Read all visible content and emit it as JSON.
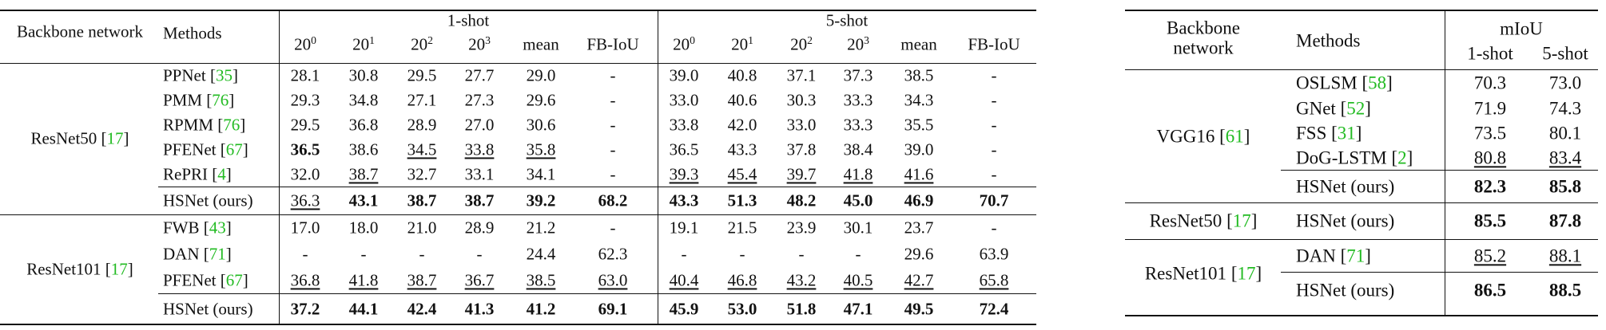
{
  "left_table": {
    "header": {
      "backbone": "Backbone network",
      "methods": "Methods",
      "groups": [
        {
          "label": "1-shot",
          "columns": [
            {
              "base": "20",
              "sup": "0"
            },
            {
              "base": "20",
              "sup": "1"
            },
            {
              "base": "20",
              "sup": "2"
            },
            {
              "base": "20",
              "sup": "3"
            },
            "mean",
            "FB-IoU"
          ]
        },
        {
          "label": "5-shot",
          "columns": [
            {
              "base": "20",
              "sup": "0"
            },
            {
              "base": "20",
              "sup": "1"
            },
            {
              "base": "20",
              "sup": "2"
            },
            {
              "base": "20",
              "sup": "3"
            },
            "mean",
            "FB-IoU"
          ]
        }
      ]
    },
    "sections": [
      {
        "backbone": {
          "name": "ResNet50",
          "ref": "[17]"
        },
        "rows": [
          {
            "method": {
              "name": "PPNet",
              "ref": "[35]"
            },
            "cells": [
              "28.1",
              "30.8",
              "29.5",
              "27.7",
              "29.0",
              "-",
              "39.0",
              "40.8",
              "37.1",
              "37.3",
              "38.5",
              "-"
            ]
          },
          {
            "method": {
              "name": "PMM",
              "ref": "[76]"
            },
            "cells": [
              "29.3",
              "34.8",
              "27.1",
              "27.3",
              "29.6",
              "-",
              "33.0",
              "40.6",
              "30.3",
              "33.3",
              "34.3",
              "-"
            ]
          },
          {
            "method": {
              "name": "RPMM",
              "ref": "[76]"
            },
            "cells": [
              "29.5",
              "36.8",
              "28.9",
              "27.0",
              "30.6",
              "-",
              "33.8",
              "42.0",
              "33.0",
              "33.3",
              "35.5",
              "-"
            ]
          },
          {
            "method": {
              "name": "PFENet",
              "ref": "[67]"
            },
            "cells": [
              {
                "text": "36.5",
                "style": "bold"
              },
              "38.6",
              {
                "text": "34.5",
                "style": "underline"
              },
              {
                "text": "33.8",
                "style": "underline"
              },
              {
                "text": "35.8",
                "style": "underline"
              },
              "-",
              "36.5",
              "43.3",
              "37.8",
              "38.4",
              "39.0",
              "-"
            ]
          },
          {
            "method": {
              "name": "RePRI",
              "ref": "[4]"
            },
            "cells": [
              "32.0",
              {
                "text": "38.7",
                "style": "underline"
              },
              "32.7",
              "33.1",
              "34.1",
              "-",
              {
                "text": "39.3",
                "style": "underline"
              },
              {
                "text": "45.4",
                "style": "underline"
              },
              {
                "text": "39.7",
                "style": "underline"
              },
              {
                "text": "41.8",
                "style": "underline"
              },
              {
                "text": "41.6",
                "style": "underline"
              },
              "-"
            ]
          },
          {
            "method": {
              "name": "HSNet (ours)"
            },
            "cells": [
              {
                "text": "36.3",
                "style": "underline"
              },
              {
                "text": "43.1",
                "style": "bold"
              },
              {
                "text": "38.7",
                "style": "bold"
              },
              {
                "text": "38.7",
                "style": "bold"
              },
              {
                "text": "39.2",
                "style": "bold"
              },
              {
                "text": "68.2",
                "style": "bold"
              },
              {
                "text": "43.3",
                "style": "bold"
              },
              {
                "text": "51.3",
                "style": "bold"
              },
              {
                "text": "48.2",
                "style": "bold"
              },
              {
                "text": "45.0",
                "style": "bold"
              },
              {
                "text": "46.9",
                "style": "bold"
              },
              {
                "text": "70.7",
                "style": "bold"
              }
            ]
          }
        ]
      },
      {
        "backbone": {
          "name": "ResNet101",
          "ref": "[17]"
        },
        "rows": [
          {
            "method": {
              "name": "FWB",
              "ref": "[43]"
            },
            "cells": [
              "17.0",
              "18.0",
              "21.0",
              "28.9",
              "21.2",
              "-",
              "19.1",
              "21.5",
              "23.9",
              "30.1",
              "23.7",
              "-"
            ]
          },
          {
            "method": {
              "name": "DAN",
              "ref": "[71]"
            },
            "cells": [
              "-",
              "-",
              "-",
              "-",
              "24.4",
              "62.3",
              "-",
              "-",
              "-",
              "-",
              "29.6",
              "63.9"
            ]
          },
          {
            "method": {
              "name": "PFENet",
              "ref": "[67]"
            },
            "cells": [
              {
                "text": "36.8",
                "style": "underline"
              },
              {
                "text": "41.8",
                "style": "underline"
              },
              {
                "text": "38.7",
                "style": "underline"
              },
              {
                "text": "36.7",
                "style": "underline"
              },
              {
                "text": "38.5",
                "style": "underline"
              },
              {
                "text": "63.0",
                "style": "underline"
              },
              {
                "text": "40.4",
                "style": "underline"
              },
              {
                "text": "46.8",
                "style": "underline"
              },
              {
                "text": "43.2",
                "style": "underline"
              },
              {
                "text": "40.5",
                "style": "underline"
              },
              {
                "text": "42.7",
                "style": "underline"
              },
              {
                "text": "65.8",
                "style": "underline"
              }
            ]
          },
          {
            "method": {
              "name": "HSNet (ours)"
            },
            "cells": [
              {
                "text": "37.2",
                "style": "bold"
              },
              {
                "text": "44.1",
                "style": "bold"
              },
              {
                "text": "42.4",
                "style": "bold"
              },
              {
                "text": "41.3",
                "style": "bold"
              },
              {
                "text": "41.2",
                "style": "bold"
              },
              {
                "text": "69.1",
                "style": "bold"
              },
              {
                "text": "45.9",
                "style": "bold"
              },
              {
                "text": "53.0",
                "style": "bold"
              },
              {
                "text": "51.8",
                "style": "bold"
              },
              {
                "text": "47.1",
                "style": "bold"
              },
              {
                "text": "49.5",
                "style": "bold"
              },
              {
                "text": "72.4",
                "style": "bold"
              }
            ]
          }
        ]
      }
    ]
  },
  "right_table": {
    "header": {
      "backbone": "Backbone network",
      "methods": "Methods",
      "groups": [
        {
          "label": "mIoU",
          "columns": [
            "1-shot",
            "5-shot"
          ]
        }
      ]
    },
    "sections": [
      {
        "backbone": {
          "name": "VGG16",
          "ref": "[61]"
        },
        "rows": [
          {
            "method": {
              "name": "OSLSM",
              "ref": "[58]"
            },
            "cells": [
              "70.3",
              "73.0"
            ]
          },
          {
            "method": {
              "name": "GNet",
              "ref": "[52]"
            },
            "cells": [
              "71.9",
              "74.3"
            ]
          },
          {
            "method": {
              "name": "FSS",
              "ref": "[31]"
            },
            "cells": [
              "73.5",
              "80.1"
            ]
          },
          {
            "method": {
              "name": "DoG-LSTM",
              "ref": "[2]"
            },
            "cells": [
              {
                "text": "80.8",
                "style": "underline"
              },
              {
                "text": "83.4",
                "style": "underline"
              }
            ]
          },
          {
            "method": {
              "name": "HSNet (ours)"
            },
            "cells": [
              {
                "text": "82.3",
                "style": "bold"
              },
              {
                "text": "85.8",
                "style": "bold"
              }
            ]
          }
        ]
      },
      {
        "backbone": {
          "name": "ResNet50",
          "ref": "[17]"
        },
        "rows": [
          {
            "method": {
              "name": "HSNet (ours)"
            },
            "cells": [
              {
                "text": "85.5",
                "style": "bold"
              },
              {
                "text": "87.8",
                "style": "bold"
              }
            ]
          }
        ]
      },
      {
        "backbone": {
          "name": "ResNet101",
          "ref": "[17]"
        },
        "rows": [
          {
            "method": {
              "name": "DAN",
              "ref": "[71]"
            },
            "cells": [
              {
                "text": "85.2",
                "style": "underline"
              },
              {
                "text": "88.1",
                "style": "underline"
              }
            ]
          },
          {
            "method": {
              "name": "HSNet (ours)"
            },
            "cells": [
              {
                "text": "86.5",
                "style": "bold"
              },
              {
                "text": "88.5",
                "style": "bold"
              }
            ]
          }
        ]
      }
    ]
  }
}
